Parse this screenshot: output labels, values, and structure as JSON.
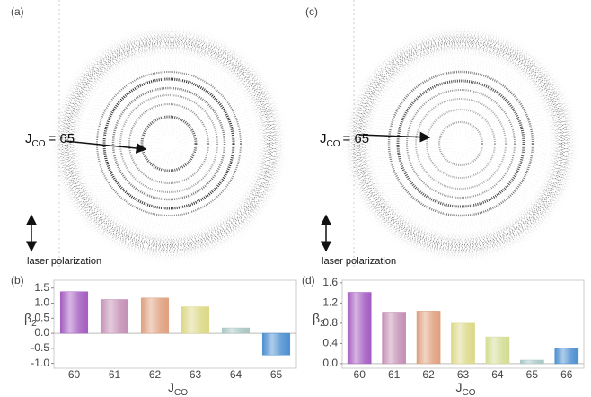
{
  "images": [
    {
      "panel_label": "(a)",
      "annotation": {
        "symbol": "J",
        "subscript": "CO",
        "text": "= 65"
      },
      "polarization_label": "laser polarization"
    },
    {
      "panel_label": "(c)",
      "annotation": {
        "symbol": "J",
        "subscript": "CO",
        "text": "= 65"
      },
      "polarization_label": "laser polarization"
    }
  ],
  "chart_data": [
    {
      "type": "bar",
      "panel_label": "(b)",
      "categories": [
        "60",
        "61",
        "62",
        "63",
        "64",
        "65"
      ],
      "values": [
        1.38,
        1.12,
        1.17,
        0.88,
        0.18,
        -0.72
      ],
      "colors": [
        "#a35cc0",
        "#c48fb5",
        "#dfa07e",
        "#dcd886",
        "#a9c6c2",
        "#4a8ed0"
      ],
      "y_label": "β",
      "y_label_sub": "2",
      "x_label": "J",
      "x_label_sub": "CO",
      "ylim": [
        -1.16,
        1.76
      ],
      "yticks": [
        {
          "value": -1,
          "label": "-1.0"
        },
        -0.5,
        {
          "value": 0,
          "label": "0.0"
        },
        0.5,
        {
          "value": 1,
          "label": "1.0"
        },
        1.5
      ]
    },
    {
      "type": "bar",
      "panel_label": "(d)",
      "categories": [
        "60",
        "61",
        "62",
        "63",
        "64",
        "65",
        "66"
      ],
      "values": [
        1.41,
        1.02,
        1.04,
        0.8,
        0.53,
        0.07,
        0.31
      ],
      "colors": [
        "#a35cc0",
        "#c48fb5",
        "#dfa07e",
        "#dcd886",
        "#d4dc92",
        "#a9c6c6",
        "#4a8ed0"
      ],
      "y_label": "β",
      "y_label_sub": "2",
      "x_label": "J",
      "x_label_sub": "CO",
      "ylim": [
        -0.09,
        1.65
      ],
      "yticks": [
        {
          "value": 0,
          "label": "0.0"
        },
        0.4,
        0.8,
        1.2,
        1.6
      ]
    }
  ]
}
